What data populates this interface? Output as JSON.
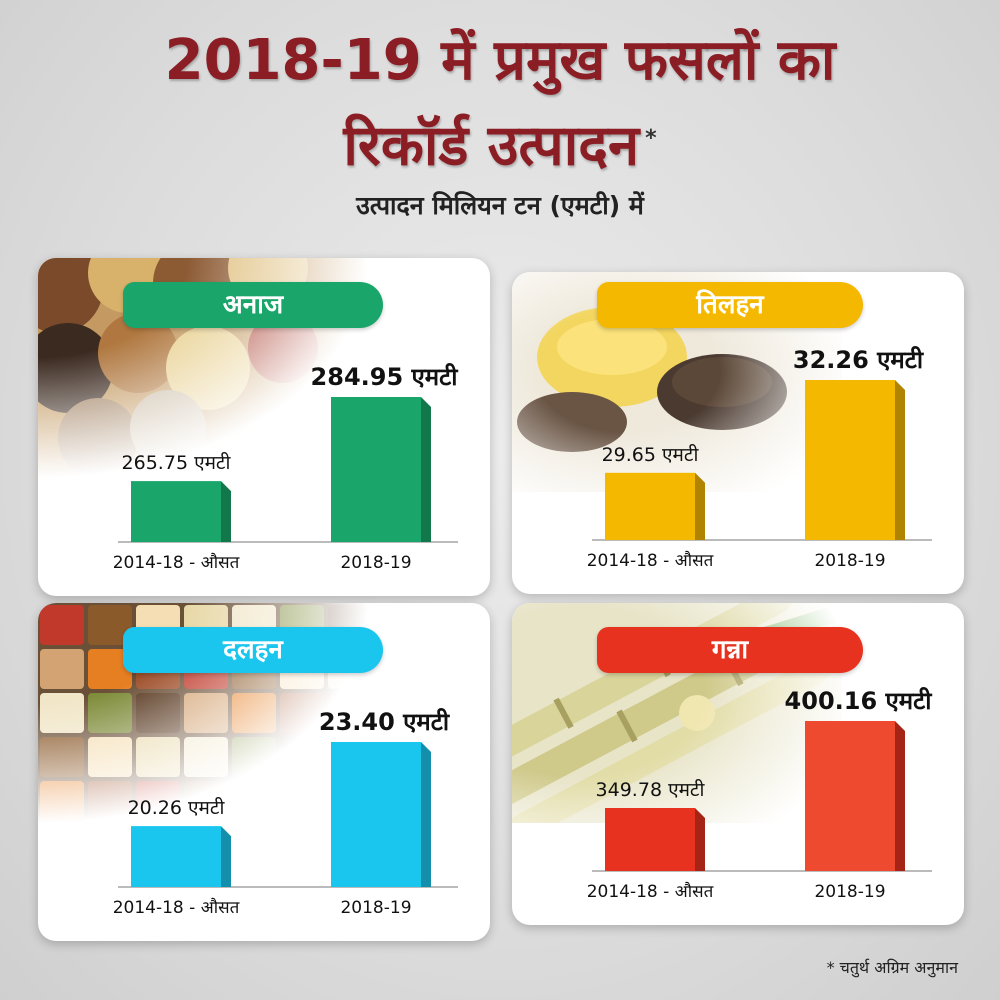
{
  "title_line1": "2018-19 में प्रमुख फसलों का",
  "title_line2": "रिकॉर्ड उत्पादन",
  "title_asterisk": "*",
  "subtitle": "उत्पादन मिलियन टन (एमटी) में",
  "footnote_marker": "*",
  "footnote": "चतुर्थ अग्रिम अनुमान",
  "colors": {
    "title": "#8b1d24",
    "cereals": "#1aa56a",
    "oilseeds": "#f5b800",
    "pulses": "#1bc6ee",
    "sugarcane": "#e6321e"
  },
  "chart_data": [
    {
      "type": "bar",
      "title": "अनाज",
      "categories": [
        "2014-18 - औसत",
        "2018-19"
      ],
      "values": [
        265.75,
        284.95
      ],
      "data_labels": [
        "265.75 एमटी",
        "284.95 एमटी"
      ],
      "unit": "एमटी",
      "color": "#1aa56a",
      "grid": false
    },
    {
      "type": "bar",
      "title": "तिलहन",
      "categories": [
        "2014-18 - औसत",
        "2018-19"
      ],
      "values": [
        29.65,
        32.26
      ],
      "data_labels": [
        "29.65 एमटी",
        "32.26 एमटी"
      ],
      "unit": "एमटी",
      "color": "#f5b800",
      "grid": false
    },
    {
      "type": "bar",
      "title": "दलहन",
      "categories": [
        "2014-18 - औसत",
        "2018-19"
      ],
      "values": [
        20.26,
        23.4
      ],
      "data_labels": [
        "20.26 एमटी",
        "23.40 एमटी"
      ],
      "unit": "एमटी",
      "color": "#1bc6ee",
      "grid": false
    },
    {
      "type": "bar",
      "title": "गन्ना",
      "categories": [
        "2014-18 - औसत",
        "2018-19"
      ],
      "values": [
        349.78,
        400.16
      ],
      "data_labels": [
        "349.78 एमटी",
        "400.16 एमटी"
      ],
      "unit": "एमटी",
      "color": "#e6321e",
      "grid": false
    }
  ]
}
